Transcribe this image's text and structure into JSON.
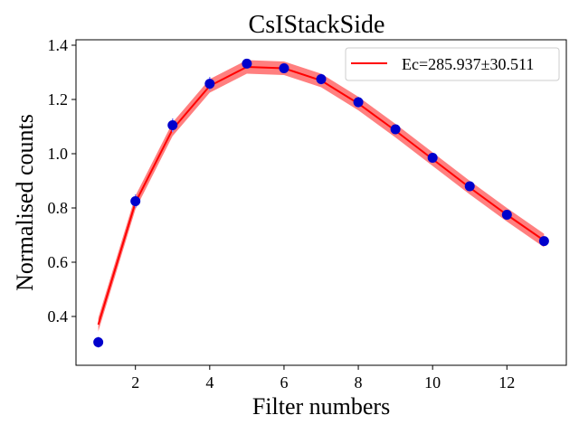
{
  "chart_data": {
    "type": "line",
    "title": "CsIStackSide",
    "xlabel": "Filter numbers",
    "ylabel": "Normalised counts",
    "xlim": [
      0.4,
      13.6
    ],
    "ylim": [
      0.22,
      1.42
    ],
    "xticks": [
      2,
      4,
      6,
      8,
      10,
      12
    ],
    "yticks": [
      0.4,
      0.6,
      0.8,
      1.0,
      1.2,
      1.4
    ],
    "xtick_labels": [
      "2",
      "4",
      "6",
      "8",
      "10",
      "12"
    ],
    "ytick_labels": [
      "0.4",
      "0.6",
      "0.8",
      "1.0",
      "1.2",
      "1.4"
    ],
    "grid": false,
    "legend_position": "top-right",
    "colors": {
      "fit": "#ff0000",
      "band": "#ff0000",
      "points": "#0000cc",
      "errorbars": "#7a7aff"
    },
    "fit": {
      "name": "Ec=285.937±30.511",
      "x": [
        1,
        2,
        3,
        4,
        5,
        6,
        7,
        8,
        9,
        10,
        11,
        12,
        13
      ],
      "y": [
        0.37,
        0.82,
        1.09,
        1.25,
        1.32,
        1.315,
        1.27,
        1.185,
        1.085,
        0.98,
        0.875,
        0.775,
        0.68
      ],
      "band_halfwidth": 0.025
    },
    "data_points": {
      "x": [
        1,
        2,
        3,
        4,
        5,
        6,
        7,
        8,
        9,
        10,
        11,
        12,
        13
      ],
      "y": [
        0.305,
        0.825,
        1.105,
        1.258,
        1.332,
        1.315,
        1.275,
        1.19,
        1.09,
        0.985,
        0.88,
        0.775,
        0.678
      ],
      "yerr": [
        0.02,
        0.025,
        0.025,
        0.025,
        0.015,
        0.015,
        0.02,
        0.02,
        0.015,
        0.015,
        0.015,
        0.015,
        0.015
      ]
    }
  }
}
